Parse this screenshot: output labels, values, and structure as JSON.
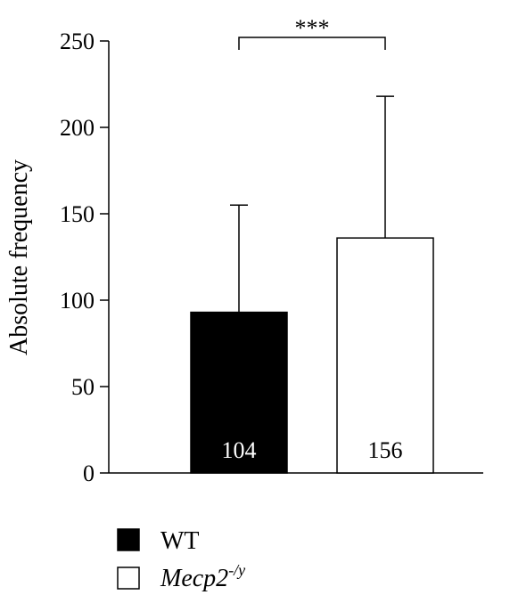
{
  "chart_data": {
    "type": "bar",
    "categories": [
      "WT",
      "Mecp2-/y"
    ],
    "values": [
      93,
      136
    ],
    "errors": [
      62,
      82
    ],
    "bar_labels": [
      "104",
      "156"
    ],
    "bar_colors": [
      "#000000",
      "#ffffff"
    ],
    "ylabel": "Absolute frequency",
    "ylim": [
      0,
      250
    ],
    "yticks": [
      0,
      50,
      100,
      150,
      200,
      250
    ],
    "significance": {
      "text": "***",
      "between": [
        0,
        1
      ]
    },
    "legend": [
      {
        "label": "WT",
        "fill": "#000000"
      },
      {
        "label_base": "Mecp2",
        "label_sup": "-/y",
        "fill": "#ffffff"
      }
    ]
  }
}
